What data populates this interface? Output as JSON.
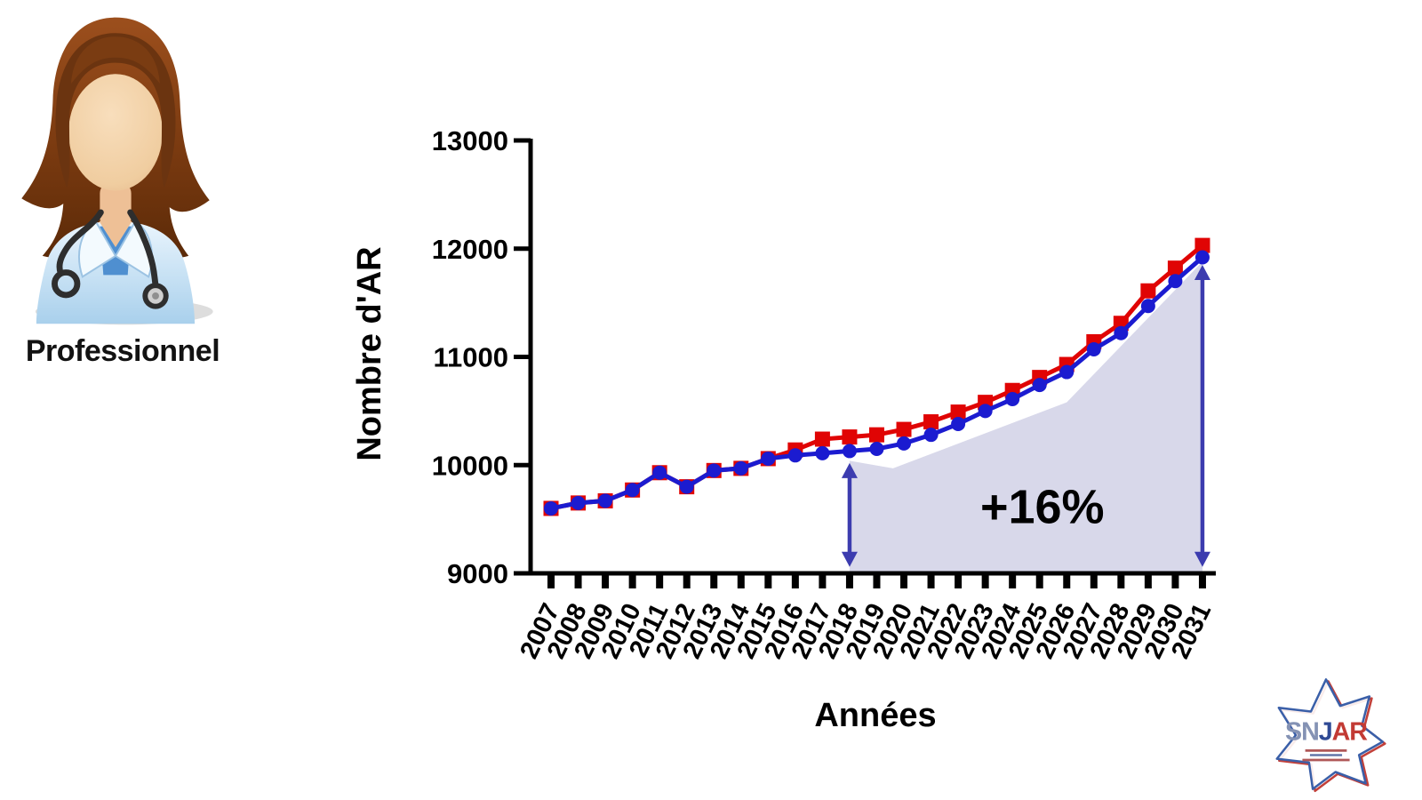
{
  "professional": {
    "label": "Professionnel"
  },
  "logo": {
    "text_sn": "SN",
    "text_j": "J",
    "text_ar": "AR"
  },
  "chart_data": {
    "type": "line",
    "title": "",
    "xlabel": "Années",
    "ylabel": "Nombre d'AR",
    "x": [
      2007,
      2008,
      2009,
      2010,
      2011,
      2012,
      2013,
      2014,
      2015,
      2016,
      2017,
      2018,
      2019,
      2020,
      2021,
      2022,
      2023,
      2024,
      2025,
      2026,
      2027,
      2028,
      2029,
      2030,
      2031
    ],
    "ylim": [
      9000,
      13000
    ],
    "yticks": [
      9000,
      10000,
      11000,
      12000,
      13000
    ],
    "grid": false,
    "legend": "none",
    "series": [
      {
        "name": "serie-rouge-carres",
        "marker": "square",
        "color": "#e00404",
        "values": [
          9600,
          9650,
          9670,
          9770,
          9930,
          9800,
          9950,
          9970,
          10060,
          10140,
          10240,
          10260,
          10280,
          10330,
          10400,
          10490,
          10580,
          10690,
          10810,
          10930,
          11140,
          11310,
          11610,
          11820,
          12030
        ]
      },
      {
        "name": "serie-bleue-cercles",
        "marker": "circle",
        "color": "#1b1bd0",
        "values": [
          9600,
          9650,
          9670,
          9770,
          9930,
          9800,
          9950,
          9970,
          10060,
          10090,
          10110,
          10130,
          10150,
          10200,
          10280,
          10380,
          10500,
          10610,
          10740,
          10860,
          11070,
          11220,
          11470,
          11700,
          11920
        ]
      }
    ],
    "band": {
      "color": "#d8d8ea",
      "points": [
        [
          2018,
          9000
        ],
        [
          2018,
          10040
        ],
        [
          2019.6,
          9970
        ],
        [
          2026,
          10580
        ],
        [
          2031,
          11880
        ],
        [
          2031,
          9000
        ]
      ]
    },
    "arrows": {
      "color": "#3c3caf",
      "items": [
        {
          "year": 2018,
          "from": 9060,
          "to": 10020
        },
        {
          "year": 2031,
          "from": 9060,
          "to": 11850
        }
      ]
    },
    "annotation": {
      "text": "+16%",
      "year": 2025.1,
      "value": 9620,
      "color": "#000000"
    },
    "axis_color": "#000000"
  }
}
